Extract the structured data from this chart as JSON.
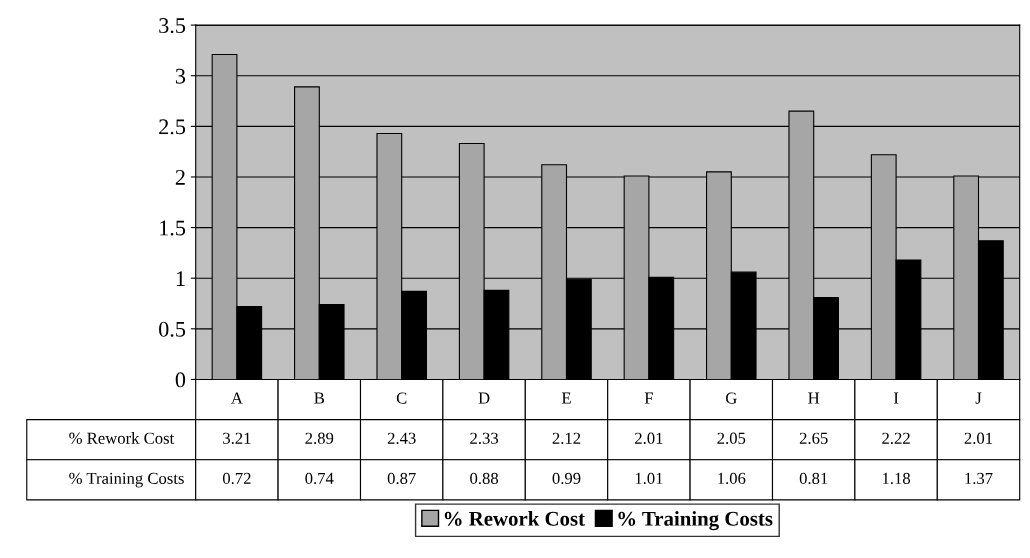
{
  "chart_data": {
    "type": "bar",
    "categories": [
      "A",
      "B",
      "C",
      "D",
      "E",
      "F",
      "G",
      "H",
      "I",
      "J"
    ],
    "series": [
      {
        "name": "% Rework Cost",
        "color": "#a6a6a6",
        "values": [
          3.21,
          2.89,
          2.43,
          2.33,
          2.12,
          2.01,
          2.05,
          2.65,
          2.22,
          2.01
        ]
      },
      {
        "name": "% Training Costs",
        "color": "#000000",
        "values": [
          0.72,
          0.74,
          0.87,
          0.88,
          0.99,
          1.01,
          1.06,
          0.81,
          1.18,
          1.37
        ]
      }
    ],
    "ylim": [
      0,
      3.5
    ],
    "yticks": [
      0,
      0.5,
      1,
      1.5,
      2,
      2.5,
      3,
      3.5
    ],
    "grid": "y",
    "legend": "bottom",
    "data_labels": true
  }
}
